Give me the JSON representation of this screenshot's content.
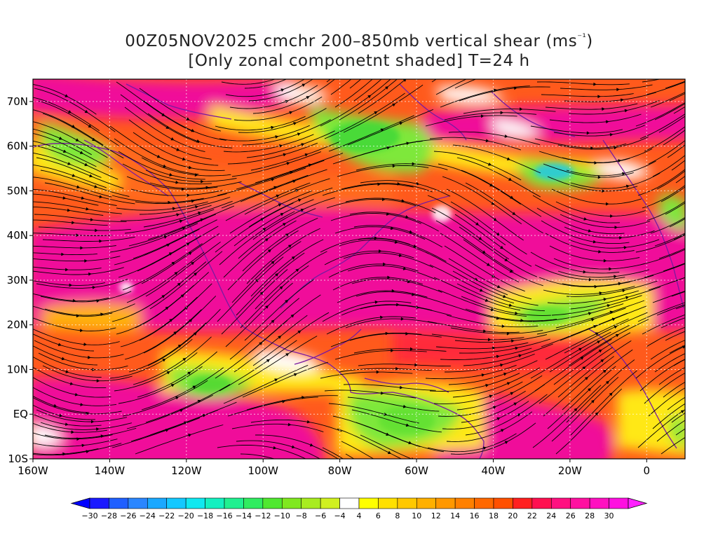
{
  "title": {
    "line1_prefix": "00Z05NOV2025 cmchr 200–850mb vertical shear (ms",
    "line1_sup": "⁻¹",
    "line1_suffix": ")",
    "line2": "[Only zonal componetnt shaded] T=24 h"
  },
  "map": {
    "lon_range": [
      -160,
      10
    ],
    "lat_range": [
      -10,
      75
    ],
    "lat_ticks": [
      {
        "value": 70,
        "label": "70N"
      },
      {
        "value": 60,
        "label": "60N"
      },
      {
        "value": 50,
        "label": "50N"
      },
      {
        "value": 40,
        "label": "40N"
      },
      {
        "value": 30,
        "label": "30N"
      },
      {
        "value": 20,
        "label": "20N"
      },
      {
        "value": 10,
        "label": "10N"
      },
      {
        "value": 0,
        "label": "EQ"
      },
      {
        "value": -10,
        "label": "10S"
      }
    ],
    "lon_ticks": [
      {
        "value": -160,
        "label": "160W"
      },
      {
        "value": -140,
        "label": "140W"
      },
      {
        "value": -120,
        "label": "120W"
      },
      {
        "value": -100,
        "label": "100W"
      },
      {
        "value": -80,
        "label": "80W"
      },
      {
        "value": -60,
        "label": "60W"
      },
      {
        "value": -40,
        "label": "40W"
      },
      {
        "value": -20,
        "label": "20W"
      },
      {
        "value": 0,
        "label": "0"
      }
    ]
  },
  "colorbar": {
    "labels": [
      "-30",
      "-28",
      "-26",
      "-24",
      "-22",
      "-20",
      "-18",
      "-16",
      "-14",
      "-12",
      "-10",
      "-8",
      "-6",
      "-4",
      "4",
      "6",
      "8",
      "10",
      "12",
      "14",
      "16",
      "18",
      "20",
      "22",
      "24",
      "26",
      "28",
      "30"
    ],
    "colors": [
      "#1a1aff",
      "#1f5fff",
      "#2a86ff",
      "#1aa8ff",
      "#14c8ff",
      "#10e8f0",
      "#14f0c0",
      "#20f090",
      "#30ec60",
      "#50e830",
      "#80e820",
      "#a8ec20",
      "#d0f020",
      "#ffffff",
      "#ffff00",
      "#ffe000",
      "#ffc800",
      "#ffb000",
      "#ff9800",
      "#ff8000",
      "#ff6800",
      "#ff5000",
      "#ff2020",
      "#ff1050",
      "#ff1080",
      "#ff10a0",
      "#ff10c0",
      "#ff10e0"
    ],
    "low_color": "#0000ff",
    "high_color": "#ff20ff"
  },
  "palette": {
    "magenta": "#f0109a",
    "red": "#ff4a20",
    "orange": "#ff8a10",
    "yellow": "#ffe818",
    "green": "#7ee83a",
    "white": "#ffffff",
    "coast": "#7a1aa0",
    "streamline": "#000000"
  }
}
